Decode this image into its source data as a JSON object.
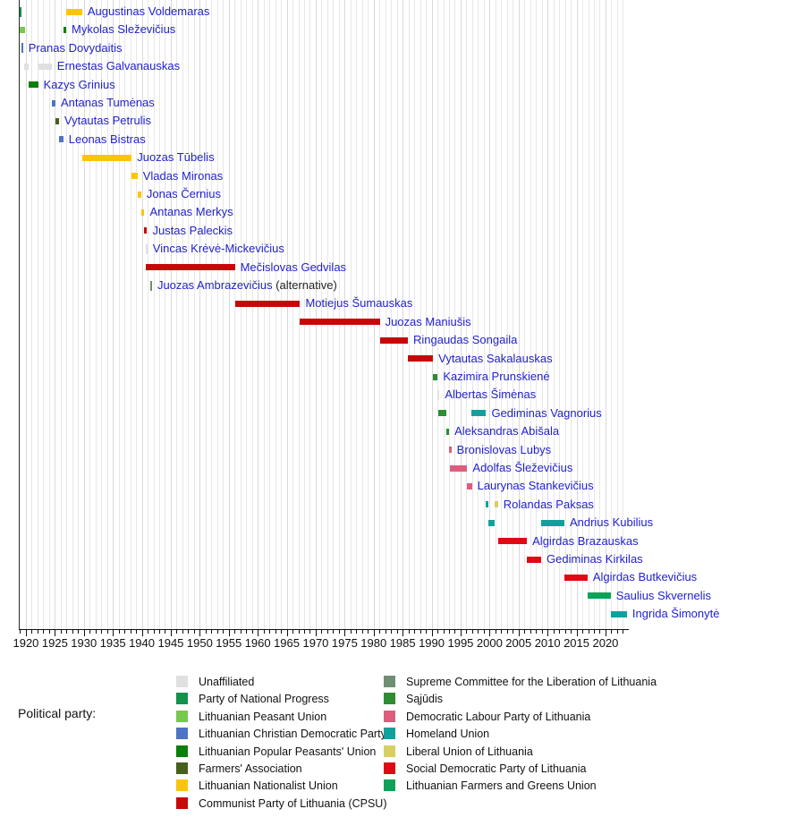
{
  "legend_heading": "Political party:",
  "chart_data": {
    "type": "timeline",
    "description": "Gantt-style timeline of Prime Ministers of Lithuania colored by political party",
    "axis": {
      "min_year": 1918.7,
      "max_year": 2024,
      "grid": true,
      "minor_tick_start": 1919,
      "minor_tick_end": 2023,
      "minor_tick_interval": 1,
      "major_ticks": [
        1920,
        1925,
        1930,
        1935,
        1940,
        1945,
        1950,
        1955,
        1960,
        1965,
        1970,
        1975,
        1980,
        1985,
        1990,
        1995,
        2000,
        2005,
        2010,
        2015,
        2020
      ]
    },
    "parties": {
      "unaffiliated": {
        "label": "Unaffiliated",
        "color": "#e0e0e0"
      },
      "pnp": {
        "label": "Party of National Progress",
        "color": "#12924a"
      },
      "peasant_union": {
        "label": "Lithuanian Peasant Union",
        "color": "#77c84c"
      },
      "lcdp": {
        "label": "Lithuanian Christian Democratic Party",
        "color": "#4d74c6"
      },
      "popular_peasants": {
        "label": "Lithuanian Popular Peasants' Union",
        "color": "#0b7f0b"
      },
      "farmers_assoc": {
        "label": "Farmers' Association",
        "color": "#47611b"
      },
      "nationalist": {
        "label": "Lithuanian Nationalist Union",
        "color": "#fdc40c"
      },
      "cpsu": {
        "label": "Communist Party of Lithuania (CPSU)",
        "color": "#c80808"
      },
      "supreme_committee": {
        "label": "Supreme Committee for the Liberation of Lithuania",
        "color": "#6f8e72"
      },
      "sajudis": {
        "label": "Sąjūdis",
        "color": "#2f8c33"
      },
      "dlp": {
        "label": "Democratic Labour Party of Lithuania",
        "color": "#de5d7f"
      },
      "homeland": {
        "label": "Homeland Union",
        "color": "#12a09c"
      },
      "liberal_union": {
        "label": "Liberal Union of Lithuania",
        "color": "#d8cf62"
      },
      "sdp": {
        "label": "Social Democratic Party of Lithuania",
        "color": "#e00a14"
      },
      "farmers_greens": {
        "label": "Lithuanian Farmers and Greens Union",
        "color": "#0aa357"
      }
    },
    "legend_columns": [
      [
        "unaffiliated",
        "pnp",
        "peasant_union",
        "lcdp",
        "popular_peasants",
        "farmers_assoc",
        "nationalist",
        "cpsu"
      ],
      [
        "supreme_committee",
        "sajudis",
        "dlp",
        "homeland",
        "liberal_union",
        "sdp",
        "farmers_greens"
      ]
    ],
    "rows": [
      {
        "name": "Augustinas Voldemaras",
        "segments": [
          {
            "start": 1918.85,
            "end": 1919.0,
            "party": "pnp",
            "shape": "tick"
          },
          {
            "start": 1926.95,
            "end": 1929.7,
            "party": "nationalist",
            "shape": "bar"
          }
        ]
      },
      {
        "name": "Mykolas Sleževičius",
        "segments": [
          {
            "start": 1918.95,
            "end": 1919.8,
            "party": "peasant_union",
            "shape": "bar"
          },
          {
            "start": 1926.45,
            "end": 1926.95,
            "party": "popular_peasants",
            "shape": "bar"
          }
        ]
      },
      {
        "name": "Pranas Dovydaitis",
        "segments": [
          {
            "start": 1919.2,
            "end": 1919.35,
            "party": "lcdp",
            "shape": "tick"
          }
        ]
      },
      {
        "name": "Ernestas Galvanauskas",
        "segments": [
          {
            "start": 1919.75,
            "end": 1920.5,
            "party": "unaffiliated",
            "shape": "bar"
          },
          {
            "start": 1922.1,
            "end": 1924.45,
            "party": "unaffiliated",
            "shape": "bar"
          }
        ]
      },
      {
        "name": "Kazys Grinius",
        "segments": [
          {
            "start": 1920.5,
            "end": 1922.1,
            "party": "popular_peasants",
            "shape": "bar"
          }
        ]
      },
      {
        "name": "Antanas Tumėnas",
        "segments": [
          {
            "start": 1924.45,
            "end": 1925.1,
            "party": "lcdp",
            "shape": "bar"
          }
        ]
      },
      {
        "name": "Vytautas Petrulis",
        "segments": [
          {
            "start": 1925.1,
            "end": 1925.7,
            "party": "farmers_assoc",
            "shape": "bar"
          }
        ]
      },
      {
        "name": "Leonas Bistras",
        "segments": [
          {
            "start": 1925.7,
            "end": 1926.45,
            "party": "lcdp",
            "shape": "bar"
          }
        ]
      },
      {
        "name": "Juozas Tūbelis",
        "segments": [
          {
            "start": 1929.7,
            "end": 1938.25,
            "party": "nationalist",
            "shape": "bar"
          }
        ]
      },
      {
        "name": "Vladas Mironas",
        "segments": [
          {
            "start": 1938.25,
            "end": 1939.25,
            "party": "nationalist",
            "shape": "bar"
          }
        ]
      },
      {
        "name": "Jonas Černius",
        "segments": [
          {
            "start": 1939.25,
            "end": 1939.9,
            "party": "nationalist",
            "shape": "bar"
          }
        ]
      },
      {
        "name": "Antanas Merkys",
        "segments": [
          {
            "start": 1939.9,
            "end": 1940.45,
            "party": "nationalist",
            "shape": "bar"
          }
        ]
      },
      {
        "name": "Justas Paleckis",
        "segments": [
          {
            "start": 1940.45,
            "end": 1940.65,
            "party": "cpsu",
            "shape": "bar"
          }
        ]
      },
      {
        "name": "Vincas Krėvė-Mickevičius",
        "segments": [
          {
            "start": 1940.65,
            "end": 1940.8,
            "party": "unaffiliated",
            "shape": "tick"
          }
        ]
      },
      {
        "name": "Mečislovas Gedvilas",
        "segments": [
          {
            "start": 1940.65,
            "end": 1956.05,
            "party": "cpsu",
            "shape": "bar"
          }
        ]
      },
      {
        "name": "Juozas Ambrazevičius",
        "suffix": " (alternative)",
        "segments": [
          {
            "start": 1941.45,
            "end": 1941.6,
            "party": "supreme_committee",
            "shape": "tick"
          }
        ]
      },
      {
        "name": "Motiejus Šumauskas",
        "segments": [
          {
            "start": 1956.05,
            "end": 1967.3,
            "party": "cpsu",
            "shape": "bar"
          }
        ]
      },
      {
        "name": "Juozas Maniušis",
        "segments": [
          {
            "start": 1967.3,
            "end": 1981.05,
            "party": "cpsu",
            "shape": "bar"
          }
        ]
      },
      {
        "name": "Ringaudas Songaila",
        "segments": [
          {
            "start": 1981.05,
            "end": 1985.9,
            "party": "cpsu",
            "shape": "bar"
          }
        ]
      },
      {
        "name": "Vytautas Sakalauskas",
        "segments": [
          {
            "start": 1985.9,
            "end": 1990.25,
            "party": "cpsu",
            "shape": "bar"
          }
        ]
      },
      {
        "name": "Kazimira Prunskienė",
        "segments": [
          {
            "start": 1990.25,
            "end": 1991.05,
            "party": "sajudis",
            "shape": "bar"
          }
        ]
      },
      {
        "name": "Albertas Šimėnas",
        "segments": [
          {
            "start": 1991.05,
            "end": 1991.15,
            "party": "unaffiliated",
            "shape": "tick"
          }
        ]
      },
      {
        "name": "Gediminas Vagnorius",
        "segments": [
          {
            "start": 1991.1,
            "end": 1992.55,
            "party": "sajudis",
            "shape": "bar"
          },
          {
            "start": 1996.9,
            "end": 1999.4,
            "party": "homeland",
            "shape": "bar"
          }
        ]
      },
      {
        "name": "Aleksandras Abišala",
        "segments": [
          {
            "start": 1992.55,
            "end": 1992.95,
            "party": "sajudis",
            "shape": "bar"
          }
        ]
      },
      {
        "name": "Bronislovas Lubys",
        "segments": [
          {
            "start": 1992.95,
            "end": 1993.2,
            "party": "dlp",
            "shape": "bar"
          }
        ]
      },
      {
        "name": "Adolfas Šleževičius",
        "segments": [
          {
            "start": 1993.2,
            "end": 1996.15,
            "party": "dlp",
            "shape": "bar"
          }
        ]
      },
      {
        "name": "Laurynas Stankevičius",
        "segments": [
          {
            "start": 1996.15,
            "end": 1996.95,
            "party": "dlp",
            "shape": "bar"
          }
        ]
      },
      {
        "name": "Rolandas Paksas",
        "segments": [
          {
            "start": 1999.4,
            "end": 1999.8,
            "party": "homeland",
            "shape": "bar"
          },
          {
            "start": 2000.8,
            "end": 2001.45,
            "party": "liberal_union",
            "shape": "bar"
          }
        ]
      },
      {
        "name": "Andrius Kubilius",
        "segments": [
          {
            "start": 1999.85,
            "end": 2000.8,
            "party": "homeland",
            "shape": "bar"
          },
          {
            "start": 2008.9,
            "end": 2012.9,
            "party": "homeland",
            "shape": "bar"
          }
        ]
      },
      {
        "name": "Algirdas Brazauskas",
        "segments": [
          {
            "start": 2001.5,
            "end": 2006.45,
            "party": "sdp",
            "shape": "bar"
          }
        ]
      },
      {
        "name": "Gediminas Kirkilas",
        "segments": [
          {
            "start": 2006.5,
            "end": 2008.9,
            "party": "sdp",
            "shape": "bar"
          }
        ]
      },
      {
        "name": "Algirdas Butkevičius",
        "segments": [
          {
            "start": 2012.9,
            "end": 2016.9,
            "party": "sdp",
            "shape": "bar"
          }
        ]
      },
      {
        "name": "Saulius Skvernelis",
        "segments": [
          {
            "start": 2016.9,
            "end": 2020.9,
            "party": "farmers_greens",
            "shape": "bar"
          }
        ]
      },
      {
        "name": "Ingrida Šimonytė",
        "segments": [
          {
            "start": 2020.9,
            "end": 2023.7,
            "party": "homeland",
            "shape": "bar"
          }
        ]
      }
    ]
  }
}
